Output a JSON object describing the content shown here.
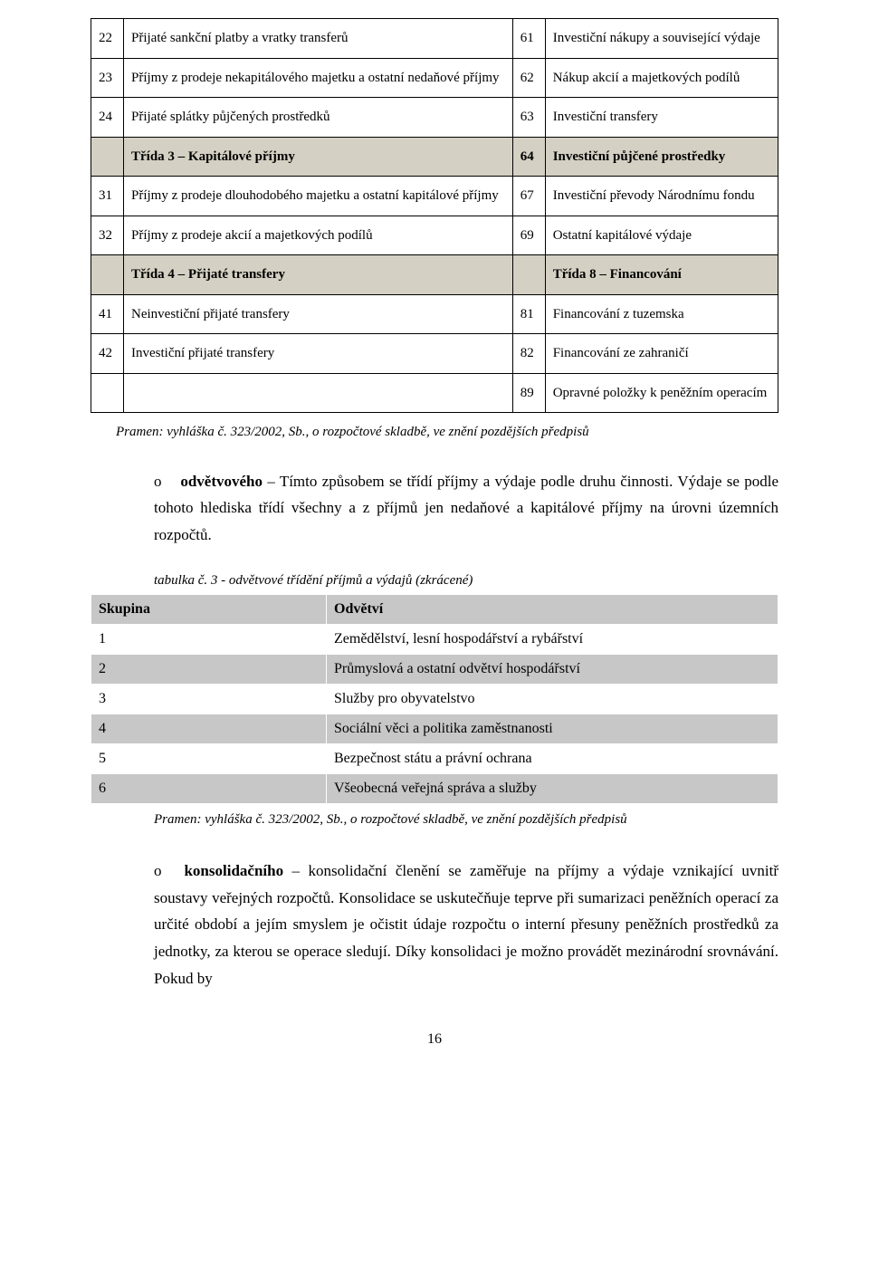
{
  "table1": {
    "header_bg": "#d4d0c3",
    "border_color": "#000000",
    "rows": [
      {
        "c1": "22",
        "c2": "Přijaté sankční platby a vratky transferů",
        "c3": "61",
        "c4": "Investiční nákupy a související výdaje",
        "header": false
      },
      {
        "c1": "23",
        "c2": "Příjmy z prodeje nekapitálového majetku a ostatní nedaňové příjmy",
        "c3": "62",
        "c4": "Nákup akcií a majetkových podílů",
        "header": false
      },
      {
        "c1": "24",
        "c2": "Přijaté splátky půjčených prostředků",
        "c3": "63",
        "c4": "Investiční transfery",
        "header": false
      },
      {
        "c1": "",
        "c2": "Třída 3 – Kapitálové příjmy",
        "c3": "64",
        "c4": "Investiční půjčené prostředky",
        "header": true
      },
      {
        "c1": "31",
        "c2": "Příjmy z prodeje dlouhodobého majetku a ostatní kapitálové příjmy",
        "c3": "67",
        "c4": "Investiční převody Národnímu fondu",
        "header": false
      },
      {
        "c1": "32",
        "c2": "Příjmy z prodeje akcií a majetkových podílů",
        "c3": "69",
        "c4": "Ostatní kapitálové výdaje",
        "header": false
      },
      {
        "c1": "",
        "c2": "Třída 4 – Přijaté transfery",
        "c3": "",
        "c4": "Třída 8 – Financování",
        "header": true
      },
      {
        "c1": "41",
        "c2": "Neinvestiční přijaté transfery",
        "c3": "81",
        "c4": "Financování z tuzemska",
        "header": false
      },
      {
        "c1": "42",
        "c2": "Investiční přijaté transfery",
        "c3": "82",
        "c4": "Financování ze zahraničí",
        "header": false
      },
      {
        "c1": "",
        "c2": "",
        "c3": "89",
        "c4": "Opravné položky k peněžním operacím",
        "header": false
      }
    ]
  },
  "source1": "Pramen: vyhláška č. 323/2002, Sb., o rozpočtové skladbě, ve znění pozdějších předpisů",
  "para1": {
    "bullet": "o",
    "lead_bold": "odvětvového",
    "rest": " – Tímto způsobem se třídí příjmy a výdaje podle druhu činnosti. Výdaje se podle tohoto hlediska třídí všechny a z příjmů jen nedaňové a kapitálové příjmy na úrovni územních rozpočtů."
  },
  "table2": {
    "caption": "tabulka č. 3 - odvětvové třídění příjmů a výdajů (zkrácené)",
    "hdr_left": "Skupina",
    "hdr_right": "Odvětví",
    "rows": [
      {
        "k": "1",
        "v": "Zemědělství, lesní hospodářství a rybářství"
      },
      {
        "k": "2",
        "v": "Průmyslová a ostatní odvětví hospodářství"
      },
      {
        "k": "3",
        "v": "Služby pro obyvatelstvo"
      },
      {
        "k": "4",
        "v": "Sociální věci a  politika zaměstnanosti"
      },
      {
        "k": "5",
        "v": "Bezpečnost státu a právní ochrana"
      },
      {
        "k": "6",
        "v": "Všeobecná veřejná správa a služby"
      }
    ]
  },
  "source2": "Pramen: vyhláška č. 323/2002, Sb., o rozpočtové skladbě, ve znění pozdějších předpisů",
  "para2": {
    "bullet": "o",
    "lead_bold": "konsolidačního",
    "rest": " – konsolidační členění se zaměřuje na příjmy a výdaje vznikající uvnitř soustavy veřejných rozpočtů. Konsolidace se uskutečňuje teprve při sumarizaci peněžních operací za určité období a jejím smyslem je očistit údaje rozpočtu o interní přesuny peněžních prostředků za jednotky, za kterou se operace sledují. Díky konsolidaci je možno provádět mezinárodní srovnávání. Pokud by"
  },
  "page_number": "16"
}
